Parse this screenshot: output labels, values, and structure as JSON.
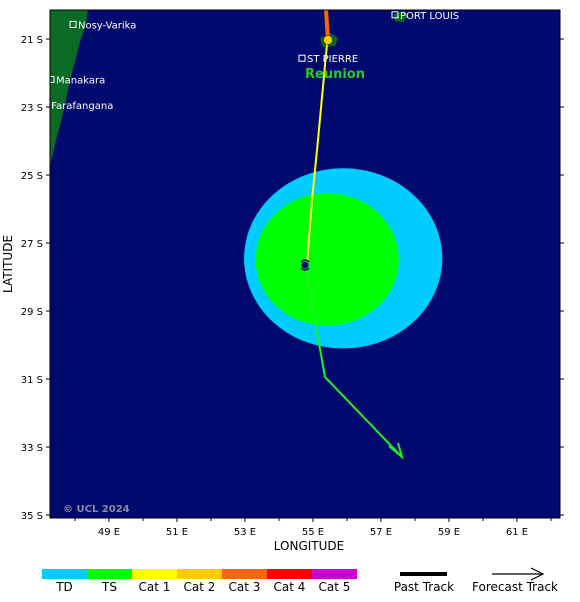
{
  "axes": {
    "xlabel": "LONGITUDE",
    "ylabel": "LATITUDE",
    "lon_ticks": [
      "49 E",
      "51 E",
      "53 E",
      "55 E",
      "57 E",
      "59 E",
      "61 E"
    ],
    "lat_ticks": [
      "21 S",
      "23 S",
      "25 S",
      "27 S",
      "29 S",
      "31 S",
      "33 S",
      "35 S"
    ]
  },
  "places": [
    {
      "name": "PORT LOUIS",
      "lat": -20.2,
      "lon": 57.5
    },
    {
      "name": "Nosy-Varika",
      "lat": -20.6,
      "lon": 48.5
    },
    {
      "name": "ST PIERRE",
      "lat": -21.3,
      "lon": 55.5
    },
    {
      "name": "Manakara",
      "lat": -22.1,
      "lon": 48.0
    },
    {
      "name": "Farafangana",
      "lat": -22.8,
      "lon": 47.8
    }
  ],
  "region_label": "Reunion",
  "credit": "© UCL 2024",
  "storm": {
    "center": {
      "lat": -27.6,
      "lon": 54.8
    },
    "wind_field": {
      "td_radius_deg": 2.65,
      "ts_radius_deg": 1.95
    }
  },
  "legend": {
    "categories": [
      {
        "label": "TD",
        "color": "#00ccff"
      },
      {
        "label": "TS",
        "color": "#00ff00"
      },
      {
        "label": "Cat 1",
        "color": "#ffff00"
      },
      {
        "label": "Cat 2",
        "color": "#ffcc00"
      },
      {
        "label": "Cat 3",
        "color": "#ff6600"
      },
      {
        "label": "Cat 4",
        "color": "#ff0000"
      },
      {
        "label": "Cat 5",
        "color": "#cc00cc"
      }
    ],
    "past_track_label": "Past Track",
    "forecast_track_label": "Forecast Track"
  },
  "colors": {
    "ocean": "#000a6e",
    "land": "#0b6a25"
  }
}
